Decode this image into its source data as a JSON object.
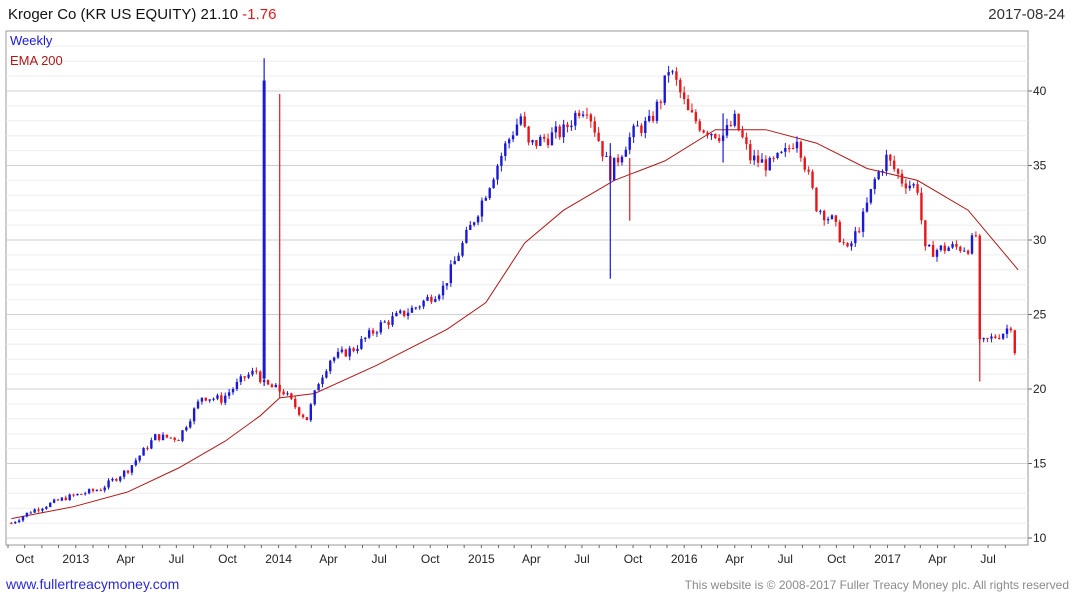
{
  "header": {
    "title": "Kroger Co (KR US EQUITY) 21.10",
    "change": "-1.76",
    "date": "2017-08-24"
  },
  "footer": {
    "url": "www.fullertreacymoney.com",
    "copyright": "This website is © 2008-2017 Fuller Treacy Money plc. All rights reserved"
  },
  "colors": {
    "up": "#1a1ad6",
    "down": "#e8161b",
    "ema": "#b01818",
    "grid": "#d8d8d8"
  },
  "chart_data": {
    "type": "line",
    "legend": [
      "Weekly",
      "EMA 200"
    ],
    "y_ticks": [
      10,
      15,
      20,
      25,
      30,
      35,
      40
    ],
    "ylim": [
      10,
      43
    ],
    "x_tick_labels": [
      "Oct",
      "2013",
      "Apr",
      "Jul",
      "Oct",
      "2014",
      "Apr",
      "Jul",
      "Oct",
      "2015",
      "Apr",
      "Jul",
      "Oct",
      "2016",
      "Apr",
      "Jul",
      "Oct",
      "2017",
      "Apr",
      "Jul"
    ],
    "x_start": "2012-09-01",
    "x_end": "2017-08-31",
    "price_anchors": [
      [
        "2012-09-07",
        11.0
      ],
      [
        "2012-10-12",
        11.8
      ],
      [
        "2012-12-14",
        12.7
      ],
      [
        "2013-02-15",
        13.3
      ],
      [
        "2013-04-05",
        14.6
      ],
      [
        "2013-05-24",
        16.8
      ],
      [
        "2013-07-05",
        16.7
      ],
      [
        "2013-08-16",
        19.5
      ],
      [
        "2013-09-20",
        19.3
      ],
      [
        "2013-11-01",
        20.8
      ],
      [
        "2013-11-22",
        21.2
      ],
      [
        "2013-12-06",
        20.3
      ],
      [
        "2014-01-10",
        19.8
      ],
      [
        "2014-02-07",
        18.5
      ],
      [
        "2014-02-21",
        18.0
      ],
      [
        "2014-03-14",
        20.5
      ],
      [
        "2014-04-04",
        22.0
      ],
      [
        "2014-05-16",
        22.7
      ],
      [
        "2014-07-04",
        24.3
      ],
      [
        "2014-09-05",
        25.5
      ],
      [
        "2014-10-24",
        26.8
      ],
      [
        "2014-12-26",
        32.0
      ],
      [
        "2015-02-13",
        36.3
      ],
      [
        "2015-03-13",
        38.3
      ],
      [
        "2015-03-27",
        36.3
      ],
      [
        "2015-04-24",
        36.8
      ],
      [
        "2015-05-29",
        37.3
      ],
      [
        "2015-06-26",
        38.8
      ],
      [
        "2015-07-10",
        39.0
      ],
      [
        "2015-08-21",
        34.5
      ],
      [
        "2015-09-18",
        36.5
      ],
      [
        "2015-10-09",
        37.5
      ],
      [
        "2015-10-30",
        37.8
      ],
      [
        "2015-11-20",
        39.5
      ],
      [
        "2015-12-04",
        41.5
      ],
      [
        "2015-12-18",
        40.5
      ],
      [
        "2016-01-08",
        38.5
      ],
      [
        "2016-02-05",
        37.5
      ],
      [
        "2016-03-11",
        37.0
      ],
      [
        "2016-04-01",
        38.0
      ],
      [
        "2016-04-29",
        35.5
      ],
      [
        "2016-06-03",
        35.0
      ],
      [
        "2016-07-01",
        35.8
      ],
      [
        "2016-07-22",
        37.0
      ],
      [
        "2016-08-26",
        32.3
      ],
      [
        "2016-09-23",
        31.3
      ],
      [
        "2016-10-21",
        29.2
      ],
      [
        "2016-11-18",
        31.5
      ],
      [
        "2016-12-09",
        34.0
      ],
      [
        "2016-12-30",
        35.5
      ],
      [
        "2017-01-27",
        34.0
      ],
      [
        "2017-02-24",
        33.5
      ],
      [
        "2017-03-10",
        29.2
      ],
      [
        "2017-04-21",
        29.5
      ],
      [
        "2017-05-26",
        29.5
      ],
      [
        "2017-06-09",
        30.3
      ],
      [
        "2017-06-16",
        23.0
      ],
      [
        "2017-07-07",
        23.4
      ],
      [
        "2017-07-28",
        23.8
      ],
      [
        "2017-08-11",
        24.3
      ],
      [
        "2017-08-24",
        21.1
      ]
    ],
    "ema_200": [
      [
        "2012-09-07",
        11.3
      ],
      [
        "2012-12-28",
        12.1
      ],
      [
        "2013-04-05",
        13.1
      ],
      [
        "2013-07-05",
        14.7
      ],
      [
        "2013-09-27",
        16.5
      ],
      [
        "2013-11-29",
        18.2
      ],
      [
        "2014-01-03",
        19.4
      ],
      [
        "2014-03-07",
        19.7
      ],
      [
        "2014-06-27",
        21.6
      ],
      [
        "2014-10-31",
        24.0
      ],
      [
        "2015-01-09",
        25.8
      ],
      [
        "2015-03-20",
        29.8
      ],
      [
        "2015-05-29",
        32.0
      ],
      [
        "2015-08-28",
        34.0
      ],
      [
        "2015-11-27",
        35.3
      ],
      [
        "2016-02-26",
        37.4
      ],
      [
        "2016-05-27",
        37.4
      ],
      [
        "2016-08-26",
        36.5
      ],
      [
        "2016-11-25",
        34.8
      ],
      [
        "2017-02-24",
        34.0
      ],
      [
        "2017-05-26",
        32.0
      ],
      [
        "2017-08-24",
        28.0
      ]
    ],
    "spikes": [
      {
        "date": "2013-12-06",
        "high": 42.2,
        "low": 20.2,
        "color": "up"
      },
      {
        "date": "2014-01-03",
        "high": 39.8,
        "low": 19.4,
        "color": "down"
      },
      {
        "date": "2015-08-21",
        "high": 36.5,
        "low": 27.4,
        "color": "up"
      },
      {
        "date": "2015-09-25",
        "high": 35.5,
        "low": 31.3,
        "color": "down"
      },
      {
        "date": "2016-03-11",
        "high": 38.5,
        "low": 35.2,
        "color": "up"
      },
      {
        "date": "2017-06-16",
        "high": 30.3,
        "low": 20.5,
        "color": "down"
      }
    ]
  }
}
